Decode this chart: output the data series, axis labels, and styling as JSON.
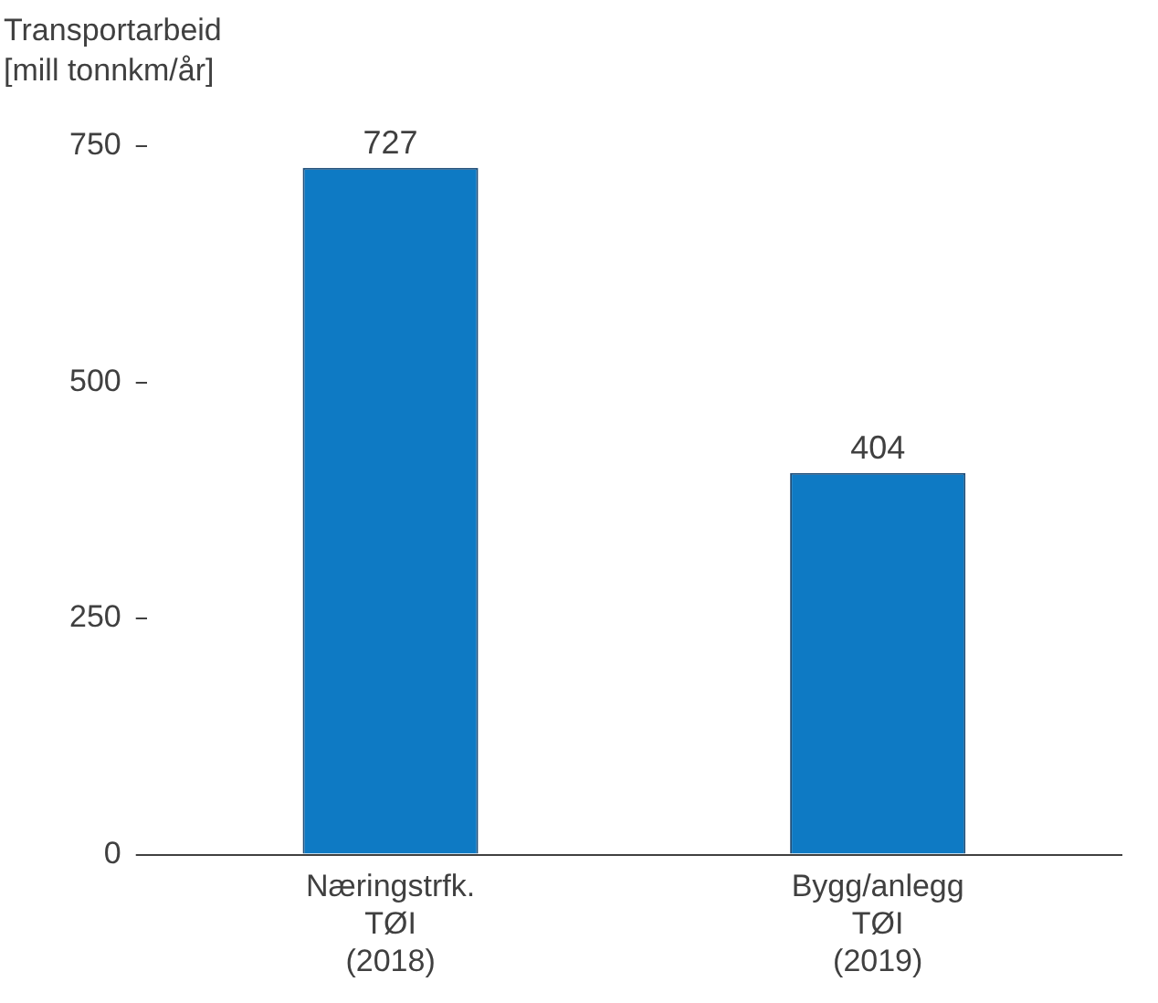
{
  "chart_data": {
    "type": "bar",
    "ylabel": "Transportarbeid\n[mill tonnkm/år]",
    "categories": [
      "Næringstrfk.\nTØI\n(2018)",
      "Bygg/anlegg\nTØI\n(2019)"
    ],
    "values": [
      727,
      404
    ],
    "color": "#0e7ac4",
    "ylim": [
      0,
      750
    ],
    "yticks": [
      0,
      250,
      500,
      750
    ],
    "grid": false,
    "legend": false,
    "data_labels": true
  }
}
